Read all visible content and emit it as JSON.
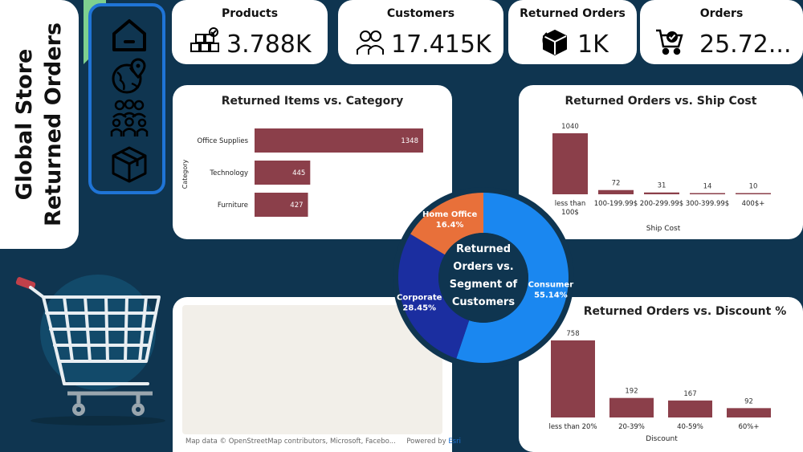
{
  "title": {
    "line1": "Global Store",
    "line2": "Returned Orders"
  },
  "nav": {
    "icons": [
      "home-icon",
      "globe-map-icon",
      "team-icon",
      "product-box-icon"
    ],
    "accent": "#1f74d6",
    "flag_color": "#7ed08f"
  },
  "kpis": [
    {
      "label": "Products",
      "value": "3.788K",
      "icon": "products-stack-icon"
    },
    {
      "label": "Customers",
      "value": "17.415K",
      "icon": "customers-icon"
    },
    {
      "label": "Returned Orders",
      "value": "1K",
      "icon": "return-box-icon"
    },
    {
      "label": "Orders",
      "value": "25.72...",
      "icon": "cart-check-icon"
    }
  ],
  "map": {
    "attribution": "Map data © OpenStreetMap contributors, Microsoft, Facebo...",
    "powered": "Powered by",
    "esri": "Esri"
  },
  "colors": {
    "bar": "#8b3f4a",
    "consumer": "#1a87f0",
    "corporate": "#1b2ea0",
    "home_office": "#e8703a",
    "background": "#0f3550"
  },
  "chart_data": [
    {
      "type": "bar",
      "orientation": "horizontal",
      "title": "Returned Items vs. Category",
      "ylabel": "Category",
      "xlabel": "",
      "categories": [
        "Office Supplies",
        "Technology",
        "Furniture"
      ],
      "values": [
        1348,
        445,
        427
      ],
      "xlim": [
        0,
        1348
      ],
      "grid": false
    },
    {
      "type": "bar",
      "title": "Returned Orders vs. Ship Cost",
      "xlabel": "Ship Cost",
      "ylabel": "",
      "categories": [
        "less than 100$",
        "100-199.99$",
        "200-299.99$",
        "300-399.99$",
        "400$+"
      ],
      "values": [
        1040,
        72,
        31,
        14,
        10
      ],
      "ylim": [
        0,
        1040
      ],
      "grid": false
    },
    {
      "type": "bar",
      "title": "Returned Orders vs. Discount %",
      "xlabel": "Discount",
      "ylabel": "",
      "categories": [
        "less than 20%",
        "20-39%",
        "40-59%",
        "60%+"
      ],
      "values": [
        758,
        192,
        167,
        92
      ],
      "ylim": [
        0,
        758
      ],
      "grid": false
    },
    {
      "type": "pie",
      "donut": true,
      "title": [
        "Returned",
        "Orders vs.",
        "Segment of",
        "Customers"
      ],
      "categories": [
        "Consumer",
        "Corporate",
        "Home Office"
      ],
      "value_labels": [
        "55.14%",
        "28.45%",
        "16.4%"
      ],
      "values": [
        55.14,
        28.45,
        16.4
      ]
    }
  ]
}
